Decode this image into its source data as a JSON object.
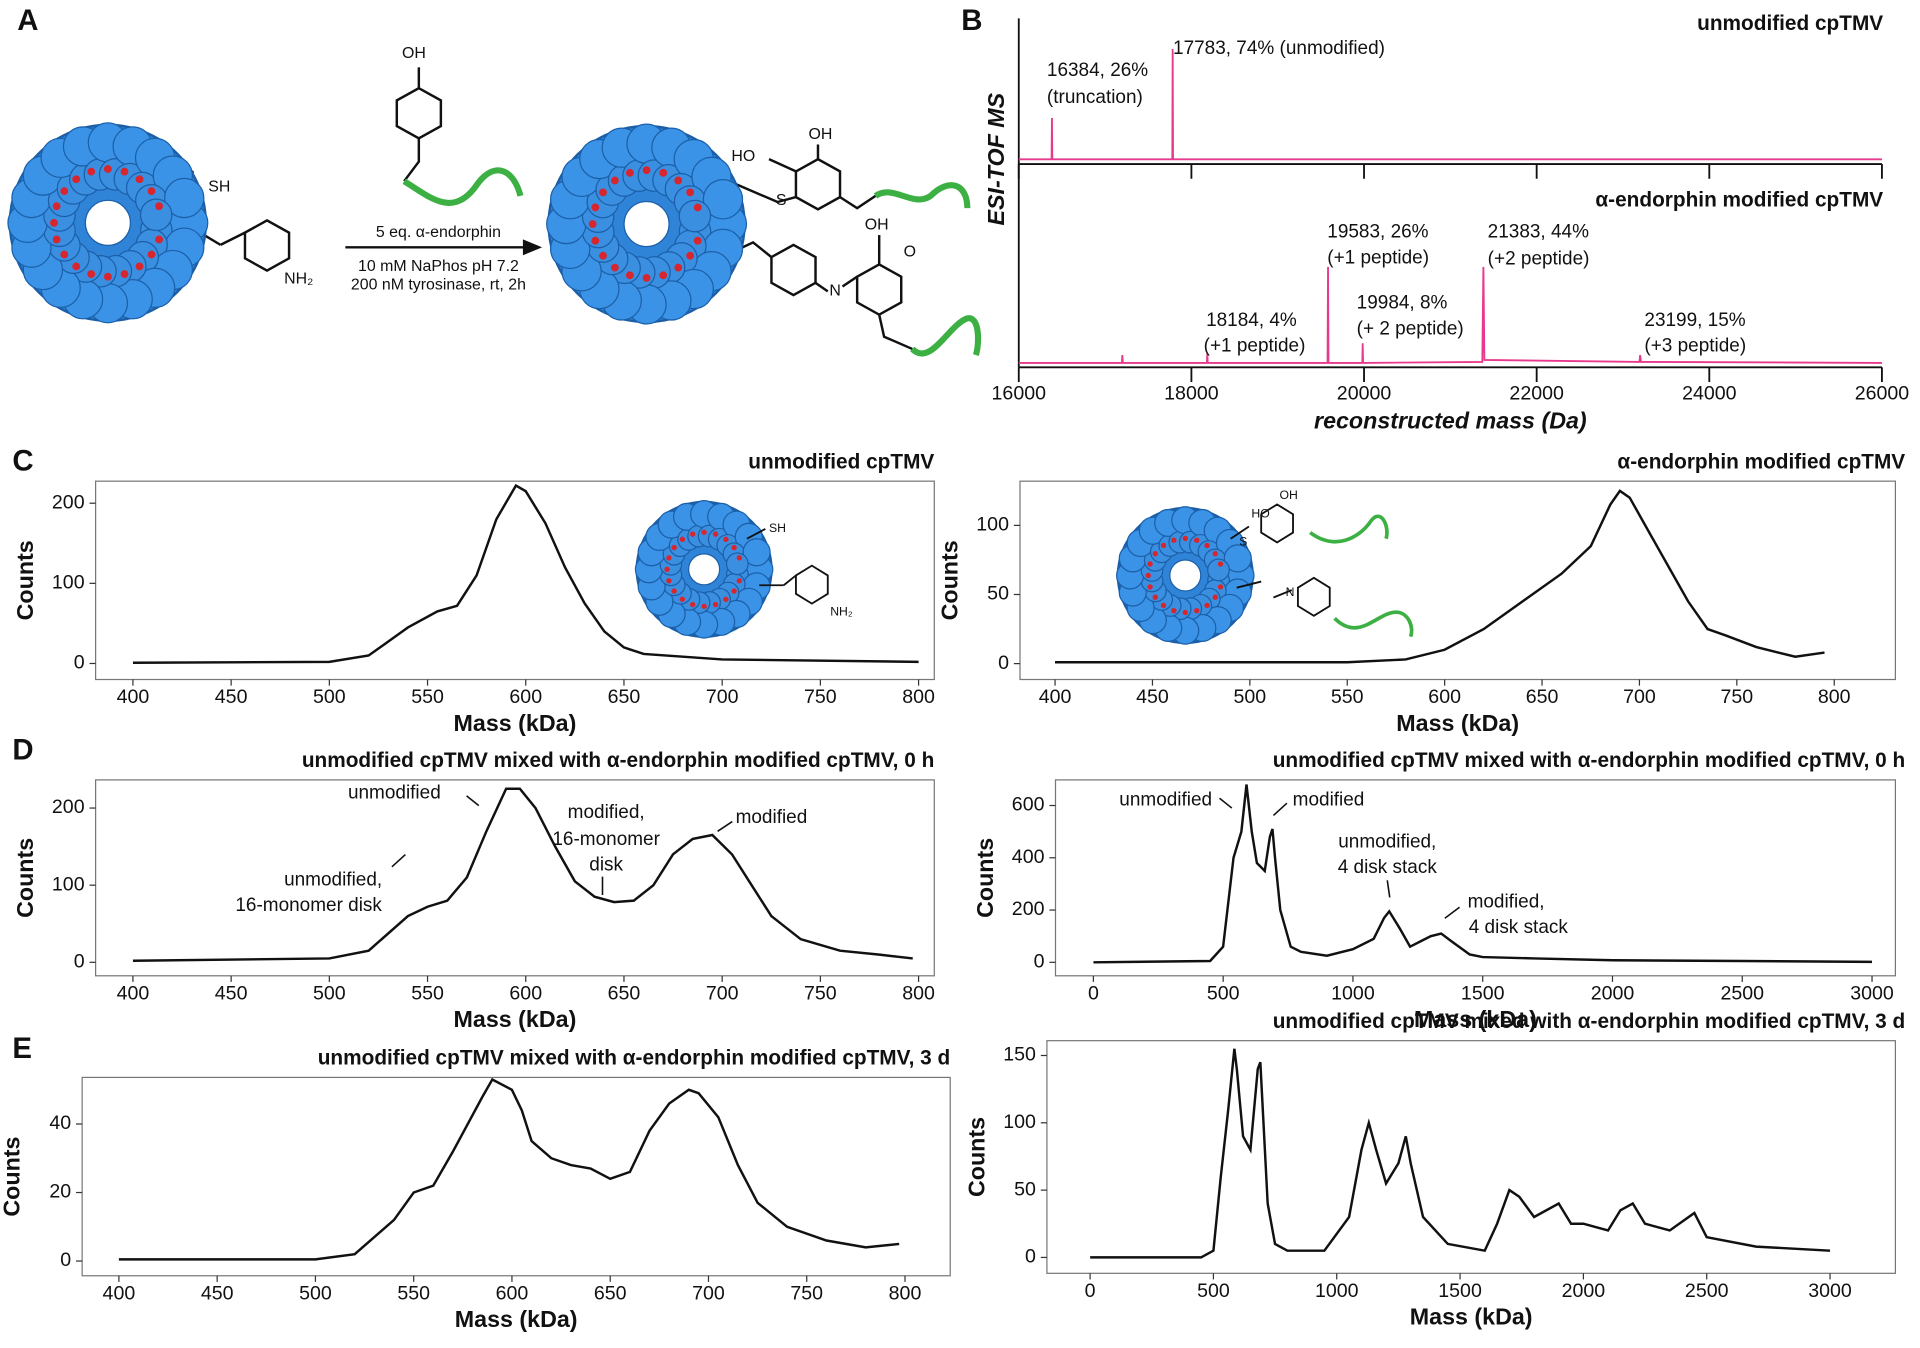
{
  "panel_labels": [
    "A",
    "B",
    "C",
    "D",
    "E"
  ],
  "scheme": {
    "tyrosine_oh": "OH",
    "thiol": "SH",
    "amine": "NH₂",
    "reagent": "5 eq. α-endorphin",
    "conditions": [
      "10 mM NaPhos pH 7.2",
      "200 nM tyrosinase, rt, 2h"
    ],
    "product_atoms": [
      "HO",
      "OH",
      "S",
      "N",
      "OH",
      "O"
    ]
  },
  "chart_data": [
    {
      "type": "spectrum",
      "ylabel": "ESI-TOF MS",
      "xlabel": "reconstructed mass (Da)",
      "xlim": [
        16000,
        26000
      ],
      "xticks": [
        16000,
        18000,
        20000,
        22000,
        24000,
        26000
      ],
      "ylim": [
        0,
        100
      ],
      "color": "#e8398d",
      "series": [
        {
          "name": "unmodified cpTMV",
          "x": [
            16000,
            16380,
            16384,
            16388,
            17779,
            17783,
            17787,
            26000
          ],
          "values": [
            1,
            1,
            38,
            1,
            1,
            100,
            1,
            1
          ],
          "annotations": [
            {
              "lines": [
                "16384, 26%",
                "(truncation)"
              ]
            },
            {
              "lines": [
                "17783, 74% (unmodified)"
              ]
            }
          ]
        },
        {
          "name": "α-endorphin modified cpTMV",
          "x": [
            16000,
            17195,
            17200,
            17205,
            18180,
            18184,
            18188,
            19578,
            19583,
            19588,
            19980,
            19984,
            19988,
            21370,
            21383,
            21395,
            23190,
            23199,
            23208,
            26000
          ],
          "values": [
            2,
            2,
            10,
            2,
            2,
            12,
            2,
            2,
            100,
            2,
            2,
            22,
            2,
            3,
            100,
            5,
            3,
            10,
            3,
            2
          ],
          "annotations": [
            {
              "lines": [
                "18184, 4%",
                "(+1 peptide)"
              ]
            },
            {
              "lines": [
                "19583, 26%",
                "(+1 peptide)"
              ]
            },
            {
              "lines": [
                "19984, 8%",
                "(+ 2 peptide)"
              ]
            },
            {
              "lines": [
                "21383, 44%",
                "(+2 peptide)"
              ]
            },
            {
              "lines": [
                "23199, 15%",
                "(+3 peptide)"
              ]
            }
          ]
        }
      ]
    },
    {
      "type": "line",
      "title": "unmodified cpTMV",
      "xlabel": "Mass (kDa)",
      "ylabel": "Counts",
      "color": "#111111",
      "xlim": [
        381,
        808
      ],
      "xticks": [
        400,
        450,
        500,
        550,
        600,
        650,
        700,
        750,
        800
      ],
      "ylim": [
        -20,
        227.5
      ],
      "yticks": [
        0,
        100,
        200
      ],
      "x": [
        400,
        500,
        520,
        540,
        555,
        565,
        575,
        585,
        595,
        600,
        610,
        620,
        630,
        640,
        650,
        660,
        700,
        800
      ],
      "values": [
        1,
        2,
        10,
        45,
        65,
        72,
        110,
        180,
        222,
        215,
        175,
        120,
        75,
        40,
        20,
        12,
        5,
        2
      ]
    },
    {
      "type": "line",
      "title": "α-endorphin modified cpTMV",
      "xlabel": "Mass (kDa)",
      "ylabel": "Counts",
      "color": "#111111",
      "xlim": [
        382,
        831.4
      ],
      "xticks": [
        400,
        450,
        500,
        550,
        600,
        650,
        700,
        750,
        800
      ],
      "ylim": [
        -11.5,
        132
      ],
      "yticks": [
        0,
        50,
        100
      ],
      "x": [
        400,
        550,
        580,
        600,
        620,
        640,
        660,
        675,
        685,
        690,
        695,
        705,
        715,
        725,
        735,
        745,
        760,
        780,
        795
      ],
      "values": [
        1,
        1,
        3,
        10,
        25,
        45,
        65,
        85,
        115,
        125,
        120,
        95,
        70,
        45,
        25,
        20,
        12,
        5,
        8
      ]
    },
    {
      "type": "line",
      "title": "unmodified cpTMV mixed with α-endorphin modified cpTMV, 0 h",
      "xlabel": "Mass (kDa)",
      "ylabel": "Counts",
      "color": "#111111",
      "xlim": [
        381,
        808
      ],
      "xticks": [
        400,
        450,
        500,
        550,
        600,
        650,
        700,
        750,
        800
      ],
      "ylim": [
        -17.5,
        236.5
      ],
      "yticks": [
        0,
        100,
        200
      ],
      "x": [
        400,
        500,
        520,
        540,
        550,
        560,
        570,
        580,
        590,
        597,
        605,
        615,
        625,
        635,
        645,
        655,
        665,
        675,
        685,
        695,
        705,
        715,
        725,
        740,
        760,
        780,
        797
      ],
      "values": [
        2,
        5,
        15,
        60,
        72,
        80,
        110,
        170,
        225,
        225,
        200,
        150,
        105,
        85,
        78,
        80,
        100,
        140,
        160,
        165,
        140,
        100,
        60,
        30,
        15,
        10,
        5
      ],
      "annotations": [
        {
          "lines": [
            "unmodified"
          ]
        },
        {
          "lines": [
            "unmodified,",
            "16-monomer disk"
          ]
        },
        {
          "lines": [
            "modified,",
            "16-monomer",
            "disk"
          ]
        },
        {
          "lines": [
            "modified"
          ]
        }
      ]
    },
    {
      "type": "line",
      "title": "unmodified cpTMV mixed with α-endorphin modified cpTMV, 0 h",
      "xlabel": "Mass (kDa)",
      "ylabel": "Counts",
      "color": "#111111",
      "xlim": [
        -146,
        3090
      ],
      "xticks": [
        0,
        500,
        1000,
        1500,
        2000,
        2500,
        3000
      ],
      "ylim": [
        -51.6,
        698
      ],
      "yticks": [
        0,
        200,
        400,
        600
      ],
      "x": [
        0,
        450,
        500,
        540,
        570,
        590,
        610,
        630,
        660,
        680,
        690,
        700,
        720,
        760,
        800,
        900,
        1000,
        1080,
        1120,
        1140,
        1180,
        1220,
        1260,
        1300,
        1340,
        1380,
        1450,
        1500,
        1700,
        2000,
        2500,
        3000
      ],
      "values": [
        0,
        5,
        60,
        400,
        500,
        680,
        500,
        380,
        350,
        480,
        510,
        400,
        200,
        60,
        40,
        25,
        50,
        90,
        170,
        195,
        130,
        60,
        80,
        100,
        110,
        80,
        30,
        20,
        15,
        8,
        5,
        2
      ],
      "annotations": [
        {
          "lines": [
            "unmodified"
          ]
        },
        {
          "lines": [
            "modified"
          ]
        },
        {
          "lines": [
            "unmodified,",
            "4 disk stack"
          ]
        },
        {
          "lines": [
            "modified,",
            "4 disk stack"
          ]
        }
      ]
    },
    {
      "type": "line",
      "title": "unmodified cpTMV mixed with α-endorphin modified cpTMV, 3 d",
      "xlabel": "Mass (kDa)",
      "ylabel": "Counts",
      "color": "#111111",
      "xlim": [
        381.3,
        823
      ],
      "xticks": [
        400,
        450,
        500,
        550,
        600,
        650,
        700,
        750,
        800
      ],
      "ylim": [
        -4.3,
        53.6
      ],
      "yticks": [
        0,
        20,
        40
      ],
      "x": [
        400,
        500,
        520,
        540,
        550,
        560,
        570,
        585,
        590,
        600,
        605,
        610,
        620,
        630,
        640,
        650,
        660,
        670,
        680,
        690,
        695,
        705,
        715,
        725,
        740,
        760,
        780,
        797
      ],
      "values": [
        0.5,
        0.5,
        2,
        12,
        20,
        22,
        32,
        48,
        53,
        50,
        44,
        35,
        30,
        28,
        27,
        24,
        26,
        38,
        46,
        50,
        49,
        42,
        28,
        17,
        10,
        6,
        4,
        5
      ]
    },
    {
      "type": "line",
      "title": "unmodified cpTMV mixed with α-endorphin modified cpTMV, 3 d",
      "xlabel": "Mass (kDa)",
      "ylabel": "Counts",
      "color": "#111111",
      "xlim": [
        -175,
        3265
      ],
      "xticks": [
        0,
        500,
        1000,
        1500,
        2000,
        2500,
        3000
      ],
      "ylim": [
        -11.8,
        161
      ],
      "yticks": [
        0,
        50,
        100,
        150
      ],
      "x": [
        0,
        450,
        500,
        530,
        560,
        585,
        595,
        620,
        650,
        680,
        690,
        700,
        720,
        750,
        800,
        950,
        1050,
        1100,
        1130,
        1160,
        1200,
        1250,
        1280,
        1300,
        1350,
        1450,
        1600,
        1650,
        1700,
        1740,
        1800,
        1900,
        1950,
        2000,
        2100,
        2150,
        2200,
        2250,
        2350,
        2450,
        2500,
        2700,
        3000
      ],
      "values": [
        0,
        0,
        5,
        60,
        110,
        155,
        140,
        90,
        80,
        140,
        145,
        110,
        40,
        10,
        5,
        5,
        30,
        80,
        100,
        80,
        55,
        70,
        90,
        70,
        30,
        10,
        5,
        25,
        50,
        45,
        30,
        40,
        25,
        25,
        20,
        35,
        40,
        25,
        20,
        33,
        15,
        8,
        5
      ]
    }
  ]
}
